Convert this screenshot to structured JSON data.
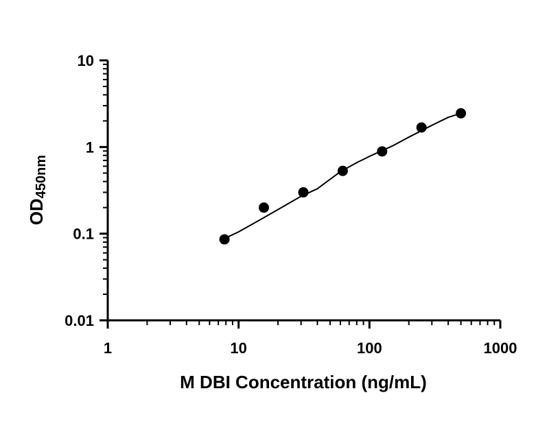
{
  "chart_data": {
    "type": "scatter",
    "xlabel": "M DBI Concentration (ng/mL)",
    "ylabel": "OD",
    "ylabel_sub": "450nm",
    "x_scale": "log",
    "y_scale": "log",
    "xlim": [
      1,
      1000
    ],
    "ylim": [
      0.01,
      10
    ],
    "x_ticks": [
      "1",
      "10",
      "100",
      "1000"
    ],
    "y_ticks": [
      "0.01",
      "0.1",
      "1",
      "10"
    ],
    "grid": false,
    "legend": "none",
    "series": [
      {
        "x": [
          7.8,
          15.6,
          31.25,
          62.5,
          125,
          250,
          500
        ],
        "y": [
          0.086,
          0.2,
          0.3,
          0.53,
          0.89,
          1.68,
          2.45
        ]
      }
    ],
    "curve": {
      "x": [
        7.8,
        10,
        15,
        20,
        30,
        40,
        60,
        80,
        100,
        150,
        200,
        300,
        400,
        500
      ],
      "y": [
        0.088,
        0.105,
        0.148,
        0.19,
        0.27,
        0.33,
        0.52,
        0.66,
        0.78,
        1.03,
        1.3,
        1.78,
        2.2,
        2.45
      ]
    },
    "colors": {
      "marker": "#000000",
      "line": "#000000",
      "axis": "#000000"
    }
  }
}
